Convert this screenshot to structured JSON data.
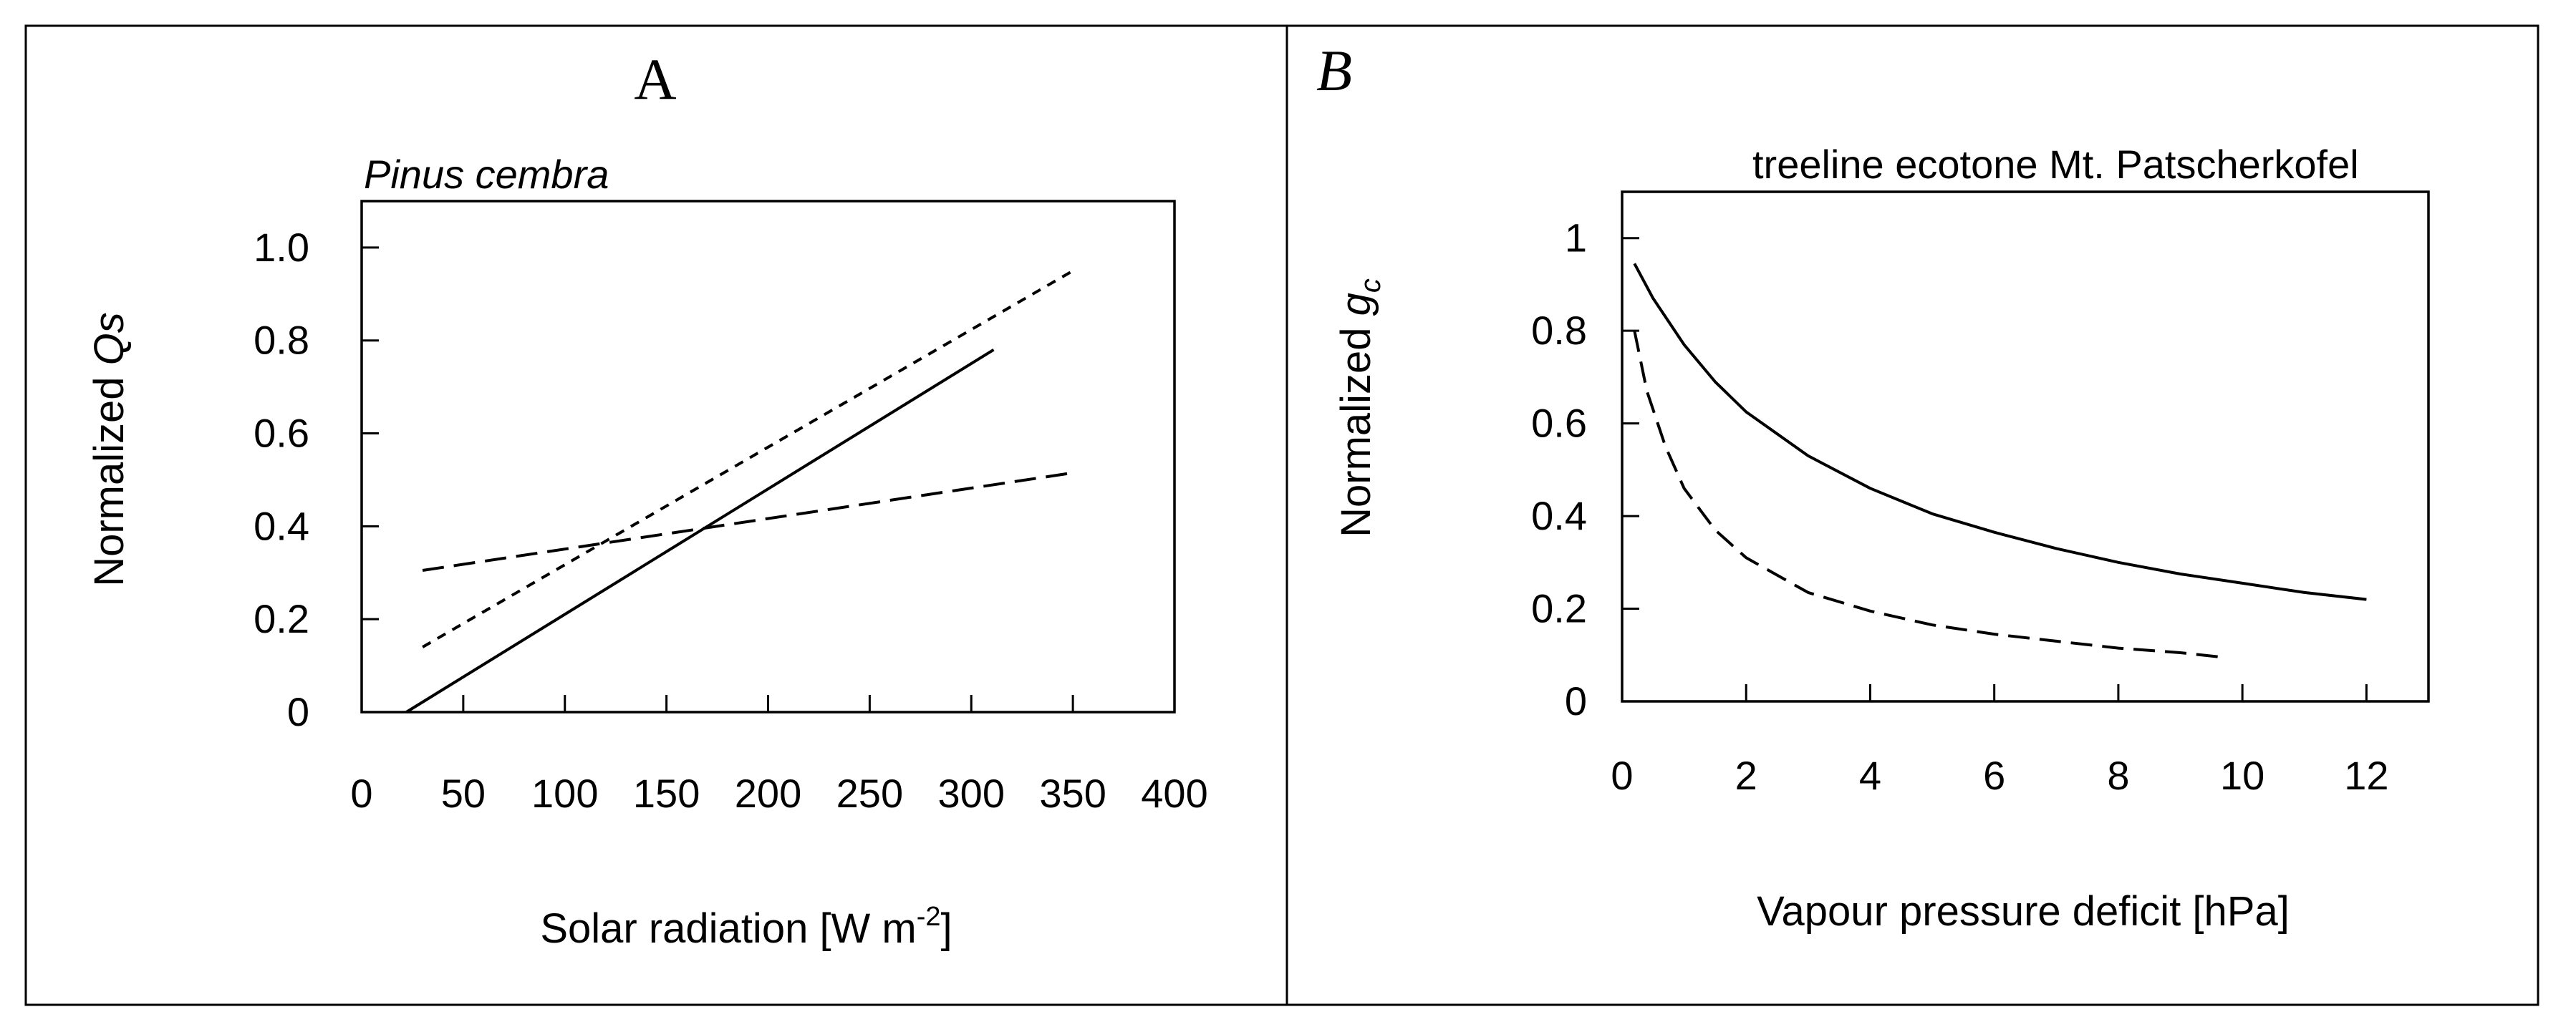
{
  "chart_data": [
    {
      "type": "line",
      "panel_label": "A",
      "title": "Pinus cembra",
      "xlabel": "Solar radiation [W m",
      "xlabel_sup": "-2",
      "xlabel_end": "]",
      "ylabel": "Normalized ",
      "ylabel_italic": "Qs",
      "xlim": [
        0,
        400
      ],
      "ylim": [
        0,
        1.1
      ],
      "xticks": [
        0,
        50,
        100,
        150,
        200,
        250,
        300,
        350,
        400
      ],
      "xtick_labels": [
        "0",
        "50",
        "100",
        "150",
        "200",
        "250",
        "300",
        "350",
        "400"
      ],
      "yticks": [
        0,
        0.2,
        0.4,
        0.6,
        0.8,
        1.0
      ],
      "ytick_labels": [
        "0",
        "0.2",
        "0.4",
        "0.6",
        "0.8",
        "1.0"
      ],
      "grid": false,
      "series": [
        {
          "name": "solid",
          "style": "solid",
          "x": [
            22,
            311
          ],
          "y": [
            0.0,
            0.78
          ]
        },
        {
          "name": "short-dash",
          "style": "dotted",
          "x": [
            30,
            350
          ],
          "y": [
            0.14,
            0.95
          ]
        },
        {
          "name": "long-dash",
          "style": "dashed",
          "x": [
            30,
            350
          ],
          "y": [
            0.305,
            0.515
          ]
        }
      ]
    },
    {
      "type": "line",
      "panel_label": "B",
      "title": "treeline ecotone Mt. Patscherkofel",
      "xlabel": "Vapour pressure deficit [hPa]",
      "ylabel": "Normalized ",
      "ylabel_italic": "g",
      "ylabel_sub": "c",
      "xlim": [
        0,
        13
      ],
      "ylim": [
        0,
        1.1
      ],
      "xticks": [
        0,
        2,
        4,
        6,
        8,
        10,
        12
      ],
      "xtick_labels": [
        "0",
        "2",
        "4",
        "6",
        "8",
        "10",
        "12"
      ],
      "yticks": [
        0,
        0.2,
        0.4,
        0.6,
        0.8,
        1.0
      ],
      "ytick_labels": [
        "0",
        "0.2",
        "0.4",
        "0.6",
        "0.8",
        "1"
      ],
      "grid": false,
      "series": [
        {
          "name": "solid",
          "style": "solid",
          "x": [
            0.2,
            0.5,
            1,
            1.5,
            2,
            3,
            4,
            5,
            6,
            7,
            8,
            9,
            10,
            11,
            12
          ],
          "y": [
            0.945,
            0.87,
            0.77,
            0.69,
            0.625,
            0.53,
            0.46,
            0.405,
            0.365,
            0.33,
            0.3,
            0.275,
            0.255,
            0.235,
            0.22
          ]
        },
        {
          "name": "dashed",
          "style": "dashed",
          "x": [
            0.2,
            0.4,
            0.7,
            1,
            1.5,
            2,
            3,
            4,
            5,
            6,
            7,
            8,
            9,
            9.7
          ],
          "y": [
            0.8,
            0.67,
            0.55,
            0.46,
            0.37,
            0.31,
            0.235,
            0.195,
            0.165,
            0.145,
            0.13,
            0.115,
            0.105,
            0.095
          ]
        }
      ]
    }
  ]
}
